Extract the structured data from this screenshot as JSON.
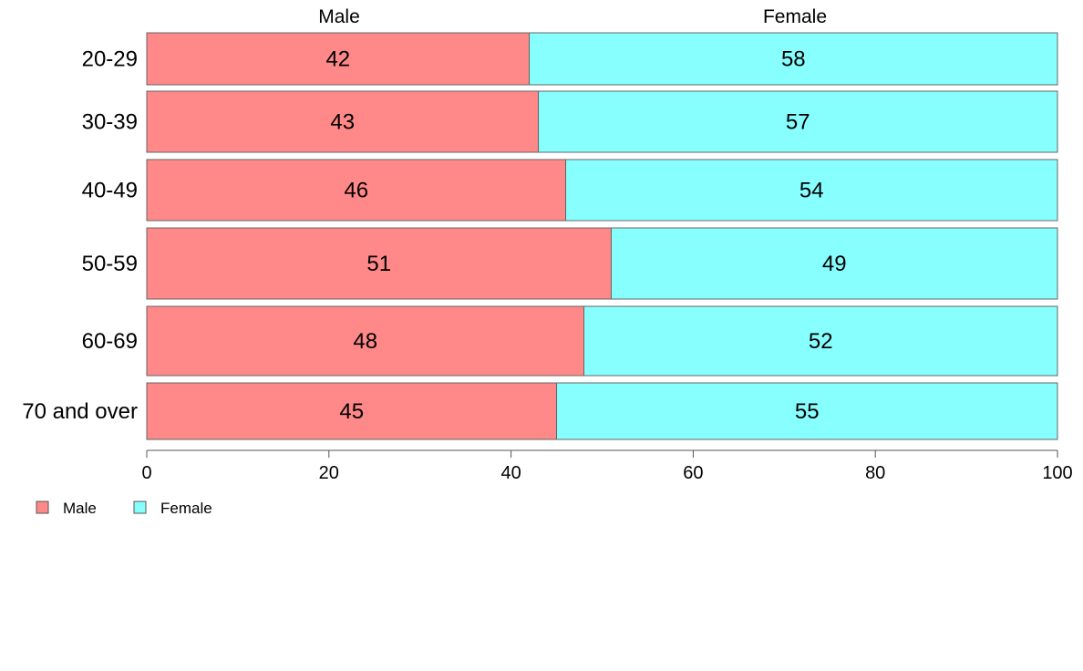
{
  "chart_data": {
    "type": "bar",
    "orientation": "horizontal",
    "stacked": true,
    "categories": [
      "20-29",
      "30-39",
      "40-49",
      "50-59",
      "60-69",
      "70 and over"
    ],
    "series": [
      {
        "name": "Male",
        "values": [
          42,
          43,
          46,
          51,
          48,
          45
        ],
        "color": "#ff8888"
      },
      {
        "name": "Female",
        "values": [
          58,
          57,
          54,
          49,
          52,
          55
        ],
        "color": "#88ffff"
      }
    ],
    "column_headers": [
      "Male",
      "Female"
    ],
    "x_ticks": [
      "0",
      "20",
      "40",
      "60",
      "80",
      "100"
    ],
    "xlim": [
      0,
      100
    ],
    "grid": false,
    "legend": {
      "placement": "bottom-left",
      "items": [
        "Male",
        "Female"
      ]
    }
  }
}
